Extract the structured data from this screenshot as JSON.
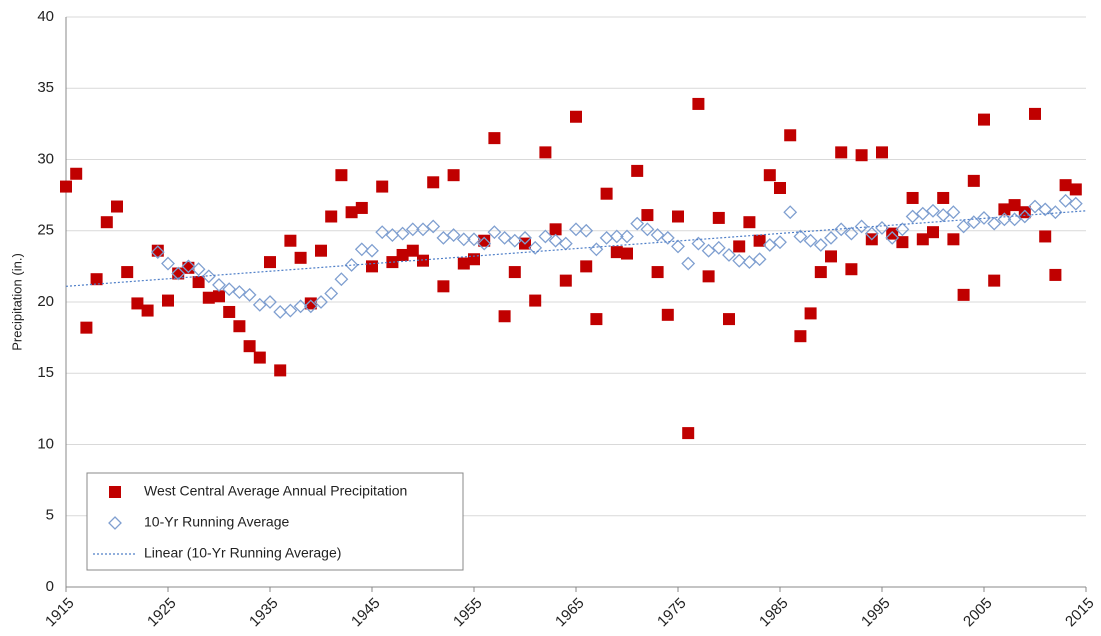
{
  "chart_data": {
    "type": "scatter",
    "y_label": "Precipitation (in.)",
    "x": [
      1915,
      1916,
      1917,
      1918,
      1919,
      1920,
      1921,
      1922,
      1923,
      1924,
      1925,
      1926,
      1927,
      1928,
      1929,
      1930,
      1931,
      1932,
      1933,
      1934,
      1935,
      1936,
      1937,
      1938,
      1939,
      1940,
      1941,
      1942,
      1943,
      1944,
      1945,
      1946,
      1947,
      1948,
      1949,
      1950,
      1951,
      1952,
      1953,
      1954,
      1955,
      1956,
      1957,
      1958,
      1959,
      1960,
      1961,
      1962,
      1963,
      1964,
      1965,
      1966,
      1967,
      1968,
      1969,
      1970,
      1971,
      1972,
      1973,
      1974,
      1975,
      1976,
      1977,
      1978,
      1979,
      1980,
      1981,
      1982,
      1983,
      1984,
      1985,
      1986,
      1987,
      1988,
      1989,
      1990,
      1991,
      1992,
      1993,
      1994,
      1995,
      1996,
      1997,
      1998,
      1999,
      2000,
      2001,
      2002,
      2003,
      2004,
      2005,
      2006,
      2007,
      2008,
      2009,
      2010,
      2011,
      2012,
      2013,
      2014
    ],
    "series": [
      {
        "name": "West Central Average Annual Precipitation",
        "color": "#c00000",
        "marker": "square",
        "values": [
          28.1,
          29.0,
          18.2,
          21.6,
          25.6,
          26.7,
          22.1,
          19.9,
          19.4,
          23.6,
          20.1,
          22.0,
          22.4,
          21.4,
          20.3,
          20.4,
          19.3,
          18.3,
          16.9,
          16.1,
          22.8,
          15.2,
          24.3,
          23.1,
          19.9,
          23.6,
          26.0,
          28.9,
          26.3,
          26.6,
          22.5,
          28.1,
          22.8,
          23.3,
          23.6,
          22.9,
          28.4,
          21.1,
          28.9,
          22.7,
          23.0,
          24.3,
          31.5,
          19.0,
          22.1,
          24.1,
          20.1,
          30.5,
          25.1,
          21.5,
          33.0,
          22.5,
          18.8,
          27.6,
          23.5,
          23.4,
          29.2,
          26.1,
          22.1,
          19.1,
          26.0,
          10.8,
          33.9,
          21.8,
          25.9,
          18.8,
          23.9,
          25.6,
          24.3,
          28.9,
          28.0,
          31.7,
          17.6,
          19.2,
          22.1,
          23.2,
          30.5,
          22.3,
          30.3,
          24.4,
          30.5,
          24.8,
          24.2,
          27.3,
          24.4,
          24.9,
          27.3,
          24.4,
          20.5,
          28.5,
          32.8,
          21.5,
          26.5,
          26.8,
          26.3,
          33.2,
          24.6,
          21.9,
          28.2,
          27.9
        ]
      },
      {
        "name": "10-Yr Running Average",
        "color": "#7f9fd0",
        "marker": "diamond",
        "values": [
          null,
          null,
          null,
          null,
          null,
          null,
          null,
          null,
          null,
          23.5,
          22.7,
          22.0,
          22.5,
          22.3,
          21.8,
          21.2,
          20.9,
          20.7,
          20.5,
          19.8,
          20.0,
          19.3,
          19.4,
          19.7,
          19.7,
          20.0,
          20.6,
          21.6,
          22.6,
          23.7,
          23.6,
          24.9,
          24.7,
          24.8,
          25.1,
          25.1,
          25.3,
          24.5,
          24.7,
          24.4,
          24.4,
          24.1,
          24.9,
          24.5,
          24.3,
          24.5,
          23.8,
          24.6,
          24.3,
          24.1,
          25.1,
          25.0,
          23.7,
          24.5,
          24.6,
          24.6,
          25.5,
          25.1,
          24.7,
          24.5,
          23.9,
          22.7,
          24.1,
          23.6,
          23.8,
          23.3,
          22.9,
          22.8,
          23.0,
          24.0,
          24.2,
          26.3,
          24.6,
          24.3,
          24.0,
          24.5,
          25.1,
          24.8,
          25.3,
          24.8,
          25.2,
          24.5,
          25.1,
          26.0,
          26.2,
          26.4,
          26.1,
          26.3,
          25.3,
          25.6,
          25.9,
          25.5,
          25.8,
          25.8,
          26.0,
          26.7,
          26.5,
          26.3,
          27.1,
          26.9
        ]
      },
      {
        "name": "Linear (10-Yr Running Average)",
        "color": "#4f7fc8",
        "marker": "dotted-line",
        "x": [
          1915,
          2015
        ],
        "values": [
          21.1,
          26.4
        ]
      }
    ],
    "xlim": [
      1915,
      2015
    ],
    "xticks": [
      1915,
      1925,
      1935,
      1945,
      1955,
      1965,
      1975,
      1985,
      1995,
      2005,
      2015
    ],
    "ylim": [
      0,
      40
    ],
    "yticks": [
      0,
      5,
      10,
      15,
      20,
      25,
      30,
      35,
      40
    ],
    "grid": true,
    "legend": "lower left"
  }
}
